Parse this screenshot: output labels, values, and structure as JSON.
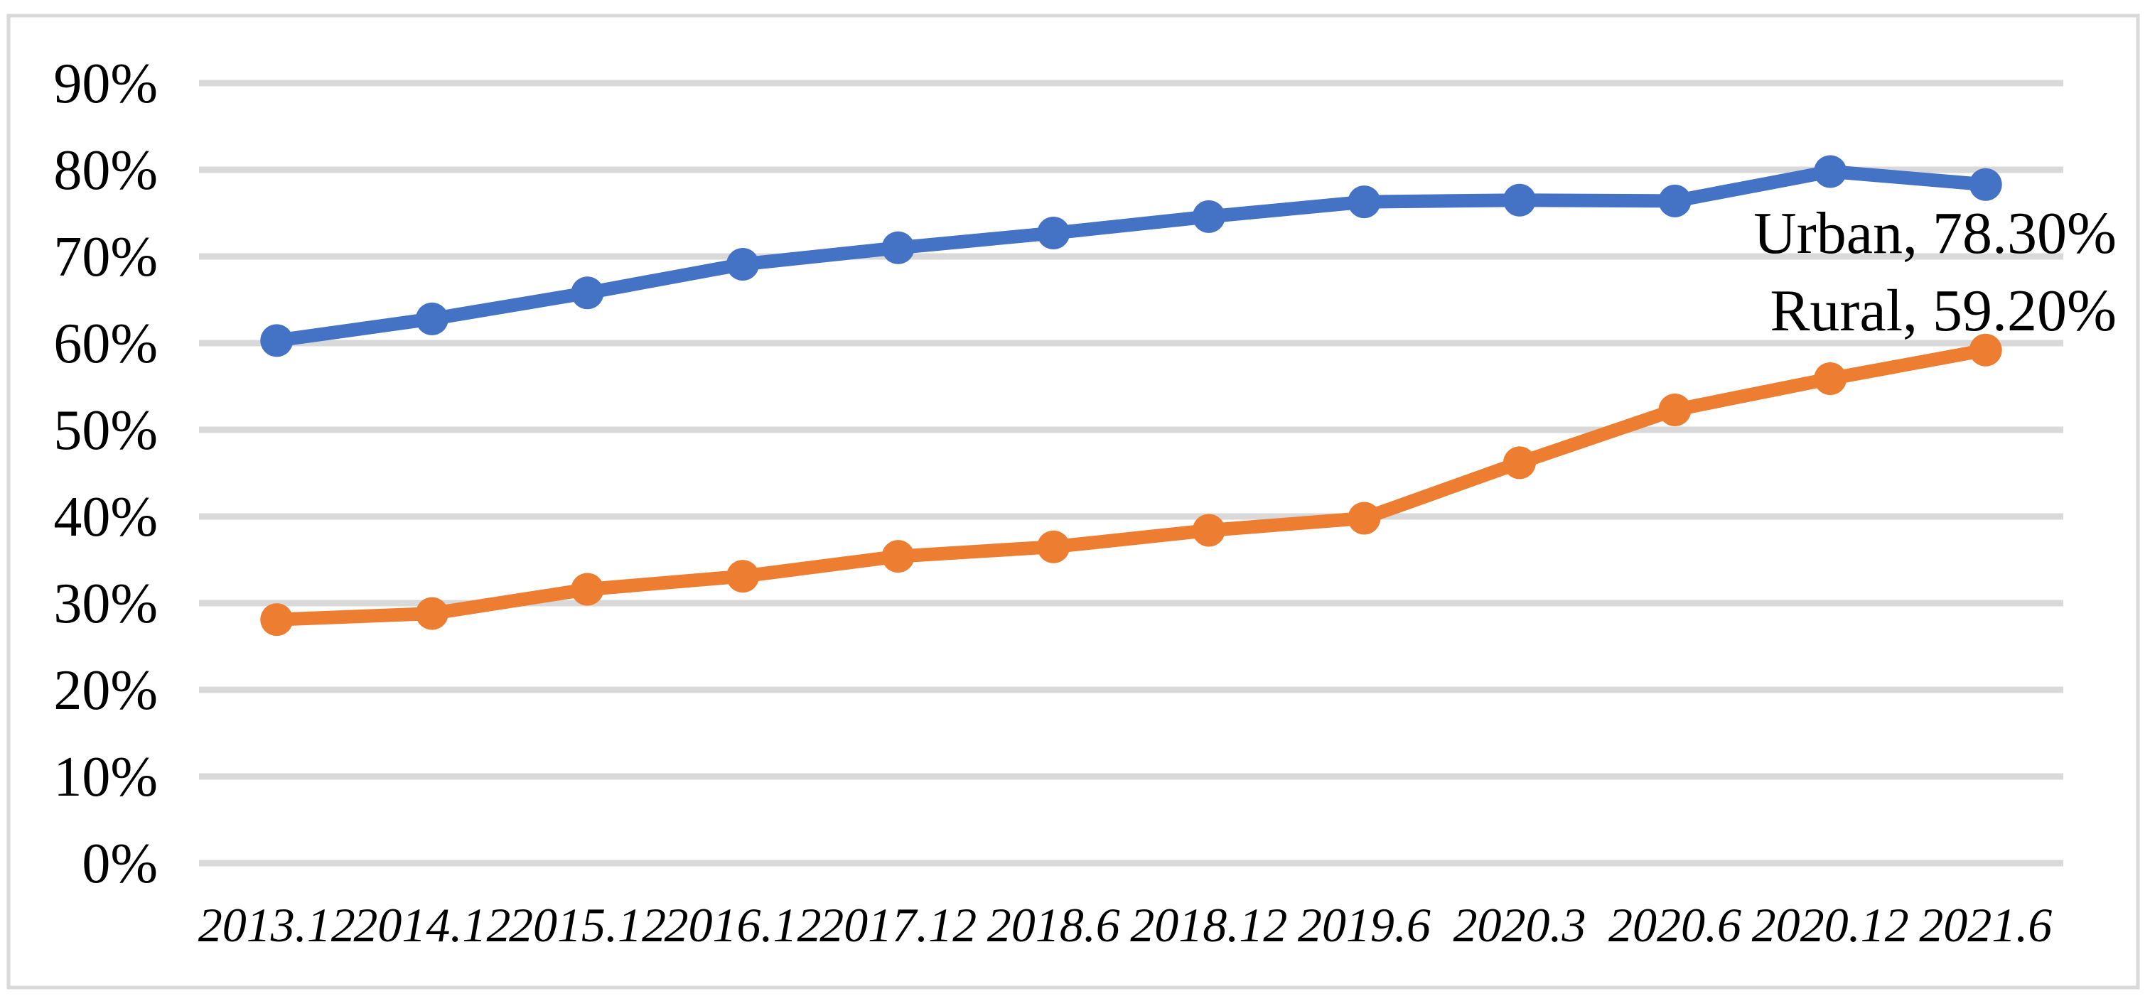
{
  "chart_data": {
    "type": "line",
    "title": "",
    "categories": [
      "2013.12",
      "2014.12",
      "2015.12",
      "2016.12",
      "2017.12",
      "2018.6",
      "2018.12",
      "2019.6",
      "2020.3",
      "2020.6",
      "2020.12",
      "2021.6"
    ],
    "series": [
      {
        "name": "Urban",
        "color": "#4472C4",
        "values": [
          60.3,
          62.8,
          65.8,
          69.1,
          71.0,
          72.7,
          74.6,
          76.3,
          76.5,
          76.4,
          79.8,
          78.3
        ],
        "end_label": "Urban, 78.30%"
      },
      {
        "name": "Rural",
        "color": "#ED7D31",
        "values": [
          28.1,
          28.8,
          31.6,
          33.1,
          35.4,
          36.5,
          38.4,
          39.8,
          46.2,
          52.3,
          55.9,
          59.2
        ],
        "end_label": "Rural, 59.20%"
      }
    ],
    "xlabel": "",
    "ylabel": "",
    "y_axis": {
      "min": 0,
      "max": 90,
      "step": 10,
      "tick_labels": [
        "0%",
        "10%",
        "20%",
        "30%",
        "40%",
        "50%",
        "60%",
        "70%",
        "80%",
        "90%"
      ]
    },
    "grid": true,
    "legend_position": "none",
    "marker_style": "filled-circle",
    "colors": {
      "gridline": "#D9D9D9",
      "chart_border": "#D9D9D9",
      "text": "#000000",
      "background": "#FFFFFF"
    }
  }
}
